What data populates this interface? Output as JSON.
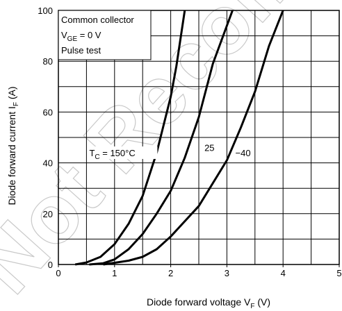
{
  "chart_data": {
    "type": "line",
    "x_range": [
      0,
      5
    ],
    "y_range": [
      0,
      100
    ],
    "x_ticks": [
      "0",
      "1",
      "2",
      "3",
      "4",
      "5"
    ],
    "y_ticks": [
      "0",
      "20",
      "40",
      "60",
      "80",
      "100"
    ],
    "grid": true,
    "xlabel": {
      "text": "Diode forward voltage",
      "symbol": "V",
      "subscript": "F",
      "unit": "(V)"
    },
    "ylabel": {
      "text": "Diode forward current",
      "symbol": "I",
      "subscript": "F",
      "unit": "(A)"
    },
    "conditions": [
      {
        "text": "Common collector"
      },
      {
        "symbol": "V",
        "subscript": "GE",
        "rest": " = 0 V"
      },
      {
        "text": "Pulse test"
      }
    ],
    "series": [
      {
        "name": "150°C",
        "label": {
          "symbol": "T",
          "subscript": "C",
          "rest": " = 150°C"
        },
        "points": [
          [
            0.3,
            0
          ],
          [
            0.5,
            0.8
          ],
          [
            0.75,
            3
          ],
          [
            1.0,
            8
          ],
          [
            1.25,
            16
          ],
          [
            1.5,
            27
          ],
          [
            1.75,
            44
          ],
          [
            2.0,
            66
          ],
          [
            2.1,
            78
          ],
          [
            2.25,
            100
          ]
        ]
      },
      {
        "name": "25",
        "label": {
          "text": "25"
        },
        "points": [
          [
            0.55,
            0
          ],
          [
            0.8,
            0.5
          ],
          [
            1.0,
            2
          ],
          [
            1.25,
            6
          ],
          [
            1.5,
            12
          ],
          [
            1.75,
            20
          ],
          [
            2.0,
            29
          ],
          [
            2.25,
            42
          ],
          [
            2.5,
            58
          ],
          [
            2.75,
            79
          ],
          [
            3.0,
            94
          ],
          [
            3.1,
            100
          ]
        ]
      },
      {
        "name": "-40",
        "label": {
          "text": "−40"
        },
        "points": [
          [
            0.8,
            0
          ],
          [
            1.25,
            1.5
          ],
          [
            1.5,
            3
          ],
          [
            1.75,
            6
          ],
          [
            2.0,
            11
          ],
          [
            2.5,
            23
          ],
          [
            3.0,
            41
          ],
          [
            3.25,
            54
          ],
          [
            3.5,
            68
          ],
          [
            3.75,
            86
          ],
          [
            4.0,
            100
          ]
        ]
      }
    ]
  },
  "watermark": "Not Recommended for New Design"
}
